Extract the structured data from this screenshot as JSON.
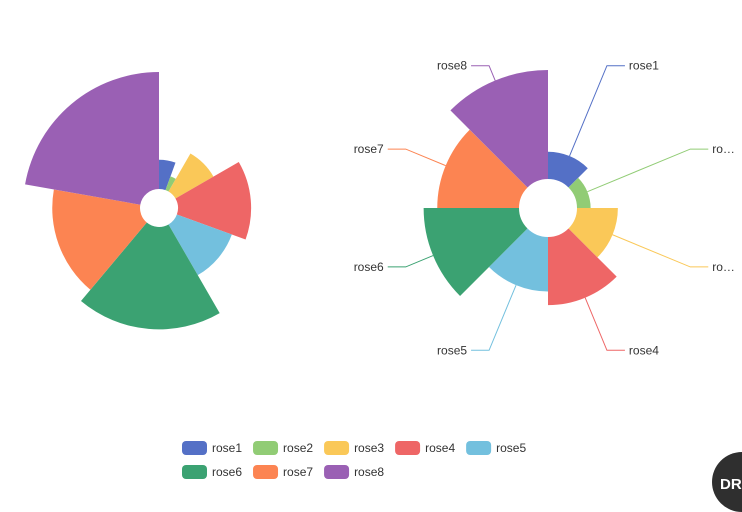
{
  "chart_data": [
    {
      "type": "pie",
      "rose_type": "radius",
      "labels_visible": false,
      "categories": [
        "rose1",
        "rose2",
        "rose3",
        "rose4",
        "rose5",
        "rose6",
        "rose7",
        "rose8"
      ],
      "values": [
        10,
        5,
        15,
        25,
        20,
        35,
        30,
        40
      ],
      "colors": [
        "#5470c6",
        "#91cc75",
        "#fac858",
        "#ee6666",
        "#73c0de",
        "#3ba272",
        "#fc8452",
        "#9a60b4"
      ]
    },
    {
      "type": "pie",
      "rose_type": "area",
      "labels_visible": true,
      "categories": [
        "rose1",
        "rose2",
        "rose3",
        "rose4",
        "rose5",
        "rose6",
        "rose7",
        "rose8"
      ],
      "values": [
        10,
        5,
        15,
        25,
        20,
        35,
        30,
        40
      ],
      "display_labels": [
        "rose1",
        "ro…",
        "ro…",
        "rose4",
        "rose5",
        "rose6",
        "rose7",
        "rose8"
      ],
      "colors": [
        "#5470c6",
        "#91cc75",
        "#fac858",
        "#ee6666",
        "#73c0de",
        "#3ba272",
        "#fc8452",
        "#9a60b4"
      ]
    }
  ],
  "legend": {
    "placement": "bottom-center",
    "items": [
      {
        "label": "rose1",
        "color": "#5470c6"
      },
      {
        "label": "rose2",
        "color": "#91cc75"
      },
      {
        "label": "rose3",
        "color": "#fac858"
      },
      {
        "label": "rose4",
        "color": "#ee6666"
      },
      {
        "label": "rose5",
        "color": "#73c0de"
      },
      {
        "label": "rose6",
        "color": "#3ba272"
      },
      {
        "label": "rose7",
        "color": "#fc8452"
      },
      {
        "label": "rose8",
        "color": "#9a60b4"
      }
    ]
  },
  "badge": {
    "text": "DR"
  }
}
